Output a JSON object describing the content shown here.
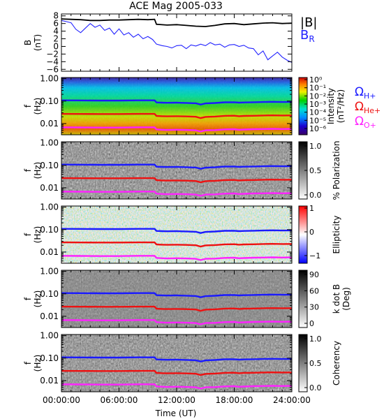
{
  "chart_data": {
    "type": "line",
    "title": "ACE Mag 2005-033",
    "xlabel": "Time (UT)",
    "x_ticks": [
      "00:00:00",
      "06:00:00",
      "12:00:00",
      "18:00:00",
      "24:00:00"
    ],
    "xlim_hours": [
      0,
      24
    ],
    "colors": {
      "B_total": "#000000",
      "B_R": "#2222ff",
      "omega_H": "#1a1aff",
      "omega_He": "#ee1111",
      "omega_O": "#ff22ff"
    },
    "panels": [
      {
        "id": "field",
        "type": "line",
        "ylabel_main": "B",
        "ylabel_sub": "(nT)",
        "yticks": [
          "8",
          "6",
          "4",
          "2",
          "0",
          "−2",
          "−4",
          "−6"
        ],
        "ylim": [
          -6.5,
          8.5
        ],
        "legend_btot": "|B|",
        "legend_br_main": "B",
        "legend_br_sub": "R",
        "series": [
          {
            "key": "B_total",
            "x": [
              0,
              1,
              2,
              3,
              4,
              5,
              6,
              7,
              8,
              9,
              9.7,
              9.9,
              11,
              12,
              13,
              14,
              15,
              16,
              17,
              18,
              19,
              20,
              21,
              22,
              23,
              24
            ],
            "y": [
              7.2,
              7.1,
              7.0,
              6.8,
              6.8,
              6.9,
              6.9,
              7.0,
              7.1,
              7.0,
              7.1,
              5.8,
              5.6,
              5.7,
              5.5,
              5.3,
              5.2,
              5.5,
              5.9,
              6.0,
              5.7,
              5.9,
              6.1,
              6.2,
              6.0,
              6.1
            ]
          },
          {
            "key": "B_R",
            "x": [
              0,
              0.5,
              1,
              1.5,
              2,
              2.5,
              3,
              3.5,
              4,
              4.5,
              5,
              5.5,
              6,
              6.5,
              7,
              7.5,
              8,
              8.5,
              9,
              9.5,
              9.9,
              10.5,
              11,
              11.5,
              12,
              12.5,
              13,
              13.5,
              14,
              14.5,
              15,
              15.5,
              16,
              16.5,
              17,
              17.5,
              18,
              18.5,
              19,
              19.5,
              20,
              20.5,
              21,
              21.5,
              22,
              22.5,
              23,
              23.5,
              24
            ],
            "y": [
              6.8,
              6.5,
              6.2,
              4.5,
              3.6,
              4.8,
              6.0,
              5.0,
              5.6,
              4.2,
              4.8,
              3.2,
              4.6,
              3.0,
              3.6,
              2.4,
              3.2,
              2.0,
              2.6,
              1.8,
              0.6,
              0.2,
              0.0,
              -0.4,
              0.2,
              0.3,
              -0.6,
              0.4,
              0.1,
              0.6,
              0.2,
              1.0,
              0.4,
              0.6,
              -0.2,
              0.4,
              0.5,
              0.0,
              0.3,
              -0.4,
              -0.6,
              -2.2,
              -1.2,
              -3.5,
              -2.5,
              -1.5,
              -2.8,
              -3.6,
              -4.2
            ]
          }
        ]
      },
      {
        "id": "intensity",
        "type": "heatmap",
        "ylabel_main": "f",
        "ylabel_sub": "(Hz)",
        "yticks": [
          "1.00",
          "0.10",
          "0.01"
        ],
        "ylim_log10": [
          -2.5,
          0.05
        ],
        "colorbar_labels": [
          "10⁰",
          "10⁻¹",
          "10⁻²",
          "10⁻³",
          "10⁻⁴",
          "10⁻⁵",
          "10⁻⁶"
        ],
        "colorbar_title": "Intensity",
        "colorbar_unit": "(nT²/Hz)",
        "legend_h_main": "Ω",
        "legend_h_sub": "H+",
        "legend_he_main": "Ω",
        "legend_he_sub": "He+",
        "legend_o_main": "Ω",
        "legend_o_sub": "O+"
      },
      {
        "id": "polarization",
        "type": "heatmap",
        "ylabel_main": "f",
        "ylabel_sub": "(Hz)",
        "yticks": [
          "1.00",
          "0.10",
          "0.01"
        ],
        "ylim_log10": [
          -2.5,
          0.05
        ],
        "colorbar_ticks": [
          "1.0",
          "0.5",
          "0.0"
        ],
        "colorbar_title": "% Polarization"
      },
      {
        "id": "ellipticity",
        "type": "heatmap",
        "ylabel_main": "f",
        "ylabel_sub": "(Hz)",
        "yticks": [
          "1.00",
          "0.10",
          "0.01"
        ],
        "ylim_log10": [
          -2.5,
          0.05
        ],
        "colorbar_ticks": [
          "1",
          "0",
          "−1"
        ],
        "colorbar_title": "Ellipticity"
      },
      {
        "id": "kdotb",
        "type": "heatmap",
        "ylabel_main": "f",
        "ylabel_sub": "(Hz)",
        "yticks": [
          "1.00",
          "0.10",
          "0.01"
        ],
        "ylim_log10": [
          -2.5,
          0.05
        ],
        "colorbar_ticks": [
          "90",
          "60",
          "30",
          "0"
        ],
        "colorbar_title": "k dot B",
        "colorbar_unit": "(Deg)"
      },
      {
        "id": "coherency",
        "type": "heatmap",
        "ylabel_main": "f",
        "ylabel_sub": "(Hz)",
        "yticks": [
          "1.00",
          "0.10",
          "0.01"
        ],
        "ylim_log10": [
          -2.5,
          0.05
        ],
        "colorbar_ticks": [
          "1.0",
          "0.5",
          "0.0"
        ],
        "colorbar_title": "Coherency"
      }
    ],
    "gyrofrequency_lines": [
      {
        "key": "omega_H",
        "x": [
          0,
          2,
          4,
          6,
          8,
          9.7,
          9.9,
          10.5,
          11,
          12,
          13,
          14,
          14.5,
          15,
          16,
          17,
          18,
          18.5,
          19,
          20,
          21,
          22,
          23,
          24
        ],
        "f_hz": [
          0.108,
          0.107,
          0.106,
          0.106,
          0.108,
          0.108,
          0.087,
          0.085,
          0.084,
          0.085,
          0.083,
          0.08,
          0.07,
          0.079,
          0.082,
          0.088,
          0.089,
          0.085,
          0.087,
          0.089,
          0.091,
          0.093,
          0.091,
          0.092
        ]
      },
      {
        "key": "omega_He",
        "x": [
          0,
          2,
          4,
          6,
          8,
          9.7,
          9.9,
          10.5,
          11,
          12,
          13,
          14,
          14.5,
          15,
          16,
          17,
          18,
          18.5,
          19,
          20,
          21,
          22,
          23,
          24
        ],
        "f_hz": [
          0.027,
          0.0268,
          0.0265,
          0.0265,
          0.027,
          0.027,
          0.0218,
          0.0212,
          0.021,
          0.0212,
          0.0208,
          0.02,
          0.0175,
          0.0198,
          0.0205,
          0.022,
          0.0223,
          0.0212,
          0.0218,
          0.0222,
          0.0228,
          0.0232,
          0.0228,
          0.023
        ]
      },
      {
        "key": "omega_O",
        "x": [
          0,
          2,
          4,
          6,
          8,
          9.7,
          9.9,
          10.5,
          11,
          12,
          13,
          14,
          14.5,
          15,
          16,
          17,
          18,
          18.5,
          19,
          20,
          21,
          22,
          23,
          24
        ],
        "f_hz": [
          0.0068,
          0.0067,
          0.0066,
          0.0066,
          0.0068,
          0.0068,
          0.0055,
          0.0053,
          0.0052,
          0.0053,
          0.0052,
          0.005,
          0.0044,
          0.005,
          0.0051,
          0.0055,
          0.0056,
          0.0053,
          0.0054,
          0.0056,
          0.0057,
          0.0058,
          0.0057,
          0.0058
        ]
      }
    ]
  }
}
